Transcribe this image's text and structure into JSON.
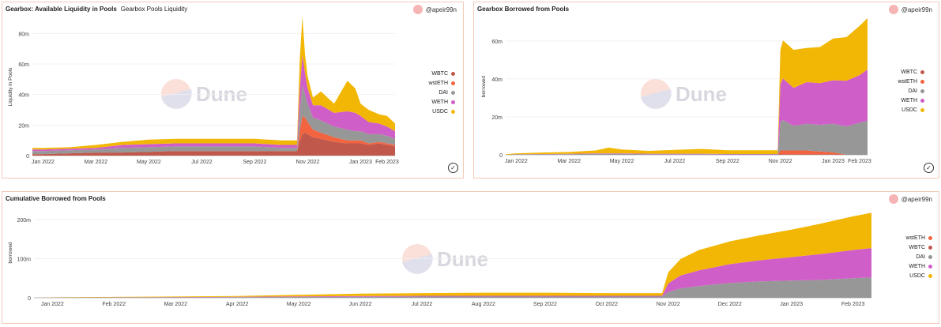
{
  "panels": [
    {
      "title": "Gearbox: Available Liquidity in Pools",
      "subtitle": "Gearbox Pools Liquidity",
      "author": "@apeir99n"
    },
    {
      "title": "Gearbox Borrowed from Pools",
      "subtitle": "",
      "author": "@apeir99n"
    },
    {
      "title": "Cumulative Borrowed from Pools",
      "subtitle": "",
      "author": "@apeir99n"
    }
  ],
  "watermark": "Dune",
  "colors": {
    "WBTC": "#c0584c",
    "wstETH": "#f26440",
    "DAI": "#979797",
    "WETH": "#d05ec8",
    "USDC": "#f2b705"
  },
  "chart_data": [
    {
      "type": "area",
      "stacked": true,
      "title": "Gearbox: Available Liquidity in Pools",
      "ylabel": "Liquidity in Pools",
      "ylim": [
        0,
        90
      ],
      "yticks": [
        0,
        20,
        40,
        60,
        80
      ],
      "ytick_labels": [
        "0",
        "20m",
        "40m",
        "60m",
        "80m"
      ],
      "xticks": [
        "Jan 2022",
        "Mar 2022",
        "May 2022",
        "Jul 2022",
        "Sep 2022",
        "Nov 2022",
        "Jan 2023",
        "Feb 2023"
      ],
      "xtick_pos": [
        0,
        2,
        4,
        6,
        8,
        10,
        12,
        13
      ],
      "x_domain": [
        -0.4,
        13.3
      ],
      "x": [
        -0.4,
        0,
        1,
        2,
        3,
        4,
        5,
        6,
        7,
        8,
        9,
        9.6,
        9.7,
        9.8,
        9.9,
        10,
        10.2,
        10.5,
        11,
        11.5,
        11.8,
        12,
        12.3,
        12.7,
        13,
        13.3
      ],
      "legend": [
        "WBTC",
        "wstETH",
        "DAI",
        "WETH",
        "USDC"
      ],
      "legend_position": "right",
      "series": [
        {
          "name": "WBTC",
          "values": [
            1,
            1,
            1.5,
            2,
            2,
            2.5,
            3,
            3,
            3,
            3,
            3,
            3,
            10,
            14,
            15,
            14,
            12,
            11,
            9,
            8,
            8,
            8,
            7,
            8,
            7,
            6
          ]
        },
        {
          "name": "wstETH",
          "values": [
            0,
            0,
            0,
            0,
            0,
            0,
            0,
            0,
            0,
            0,
            0,
            0,
            6,
            12,
            10,
            8,
            5,
            4,
            3,
            2,
            2,
            2,
            1,
            1,
            1,
            1
          ]
        },
        {
          "name": "DAI",
          "values": [
            2,
            2,
            2,
            2,
            3,
            3,
            3,
            3,
            3,
            3,
            2,
            2,
            12,
            20,
            15,
            12,
            8,
            8,
            7,
            7,
            6,
            6,
            6,
            5,
            5,
            4
          ]
        },
        {
          "name": "WETH",
          "values": [
            1,
            1,
            1,
            1,
            2,
            2,
            2,
            2,
            2,
            2,
            2,
            2,
            15,
            20,
            14,
            10,
            8,
            10,
            9,
            12,
            12,
            10,
            8,
            7,
            6,
            5
          ]
        },
        {
          "name": "USDC",
          "values": [
            1,
            1,
            1,
            2,
            2,
            3,
            3,
            3,
            3,
            3,
            3,
            3,
            20,
            25,
            12,
            8,
            5,
            9,
            6,
            20,
            16,
            8,
            8,
            6,
            7,
            5
          ]
        }
      ]
    },
    {
      "type": "area",
      "stacked": true,
      "title": "Gearbox Borrowed from Pools",
      "ylabel": "borrowed",
      "ylim": [
        0,
        72
      ],
      "yticks": [
        0,
        20,
        40,
        60
      ],
      "ytick_labels": [
        "0",
        "20m",
        "40m",
        "60m"
      ],
      "xticks": [
        "Jan 2022",
        "Mar 2022",
        "May 2022",
        "Jul 2022",
        "Sep 2022",
        "Nov 2022",
        "Jan 2023",
        "Feb 2023"
      ],
      "xtick_pos": [
        0,
        2,
        4,
        6,
        8,
        10,
        12,
        13
      ],
      "x_domain": [
        -0.4,
        13.3
      ],
      "x": [
        -0.4,
        0,
        1,
        2,
        3,
        3.5,
        4,
        5,
        6,
        7,
        8,
        9,
        9.9,
        10,
        10.1,
        10.5,
        11,
        11.5,
        12,
        12.5,
        13,
        13.3
      ],
      "legend": [
        "WBTC",
        "wstETH",
        "DAI",
        "WETH",
        "USDC"
      ],
      "legend_position": "right",
      "series": [
        {
          "name": "WBTC",
          "values": [
            0,
            0,
            0,
            0,
            0,
            0,
            0,
            0,
            0,
            0,
            0,
            0,
            0,
            0.3,
            0.3,
            0.3,
            0.3,
            0.3,
            0.3,
            0,
            0,
            0
          ]
        },
        {
          "name": "wstETH",
          "values": [
            0,
            0,
            0,
            0,
            0,
            0,
            0,
            0,
            0,
            0,
            0,
            0,
            0,
            2,
            2,
            2,
            2,
            1.5,
            1,
            0,
            0,
            0
          ]
        },
        {
          "name": "DAI",
          "values": [
            0,
            0.2,
            0.3,
            0.3,
            0.5,
            0.5,
            0.5,
            0.3,
            0.3,
            0.3,
            0.2,
            0.2,
            0.2,
            15,
            16,
            13,
            14,
            14,
            15,
            15,
            17,
            18
          ]
        },
        {
          "name": "WETH",
          "values": [
            0,
            0.1,
            0.1,
            0.2,
            0.3,
            0.3,
            0.3,
            0.3,
            0.3,
            0.3,
            0.2,
            0.2,
            0.2,
            20,
            22,
            20,
            22,
            22,
            23,
            24,
            25,
            27
          ]
        },
        {
          "name": "USDC",
          "values": [
            0.3,
            0.5,
            0.8,
            1,
            1.5,
            3,
            2,
            1.5,
            2,
            2.5,
            2,
            2,
            2,
            18,
            20,
            20,
            18,
            19,
            22,
            23,
            26,
            27
          ]
        }
      ]
    },
    {
      "type": "area",
      "stacked": true,
      "title": "Cumulative Borrowed from Pools",
      "ylabel": "borrowed",
      "ylim": [
        0,
        230
      ],
      "yticks": [
        0,
        100,
        200
      ],
      "ytick_labels": [
        "0",
        "100m",
        "200m"
      ],
      "xticks": [
        "Jan 2022",
        "Feb 2022",
        "Mar 2022",
        "Apr 2022",
        "May 2022",
        "Jun 2022",
        "Jul 2022",
        "Aug 2022",
        "Sep 2022",
        "Oct 2022",
        "Nov 2022",
        "Dec 2022",
        "Jan 2023",
        "Feb 2023"
      ],
      "xtick_pos": [
        0,
        1,
        2,
        3,
        4,
        5,
        6,
        7,
        8,
        9,
        10,
        11,
        12,
        13
      ],
      "x_domain": [
        -0.3,
        13.3
      ],
      "x": [
        -0.3,
        0,
        1,
        2,
        3,
        4,
        5,
        6,
        7,
        8,
        9,
        9.9,
        10,
        10.2,
        10.5,
        11,
        11.5,
        12,
        12.5,
        13,
        13.3
      ],
      "legend": [
        "wstETH",
        "WBTC",
        "DAI",
        "WETH",
        "USDC"
      ],
      "legend_position": "right",
      "series": [
        {
          "name": "wstETH",
          "values": [
            0,
            0,
            0,
            0,
            0,
            0,
            0,
            0,
            0,
            0,
            0,
            0,
            0,
            0,
            0,
            0,
            0,
            0,
            0,
            0,
            0
          ]
        },
        {
          "name": "WBTC",
          "values": [
            0,
            0,
            0,
            0,
            0,
            0,
            0,
            0,
            0,
            0,
            0,
            0,
            0,
            0,
            0,
            0,
            0,
            0,
            0,
            0,
            0
          ]
        },
        {
          "name": "DAI",
          "values": [
            0,
            0.5,
            0.8,
            1,
            1.5,
            2,
            2.5,
            3,
            3,
            3,
            3,
            3,
            15,
            24,
            30,
            38,
            42,
            44,
            46,
            50,
            52
          ]
        },
        {
          "name": "WETH",
          "values": [
            0,
            0.3,
            0.5,
            0.8,
            1,
            1.5,
            2,
            2,
            2,
            2,
            2,
            2,
            22,
            33,
            40,
            48,
            54,
            60,
            66,
            72,
            75
          ]
        },
        {
          "name": "USDC",
          "values": [
            0,
            0.5,
            1,
            1.5,
            2,
            4,
            6,
            7,
            8,
            8,
            7,
            7,
            28,
            42,
            52,
            58,
            64,
            70,
            78,
            86,
            90
          ]
        }
      ]
    }
  ]
}
